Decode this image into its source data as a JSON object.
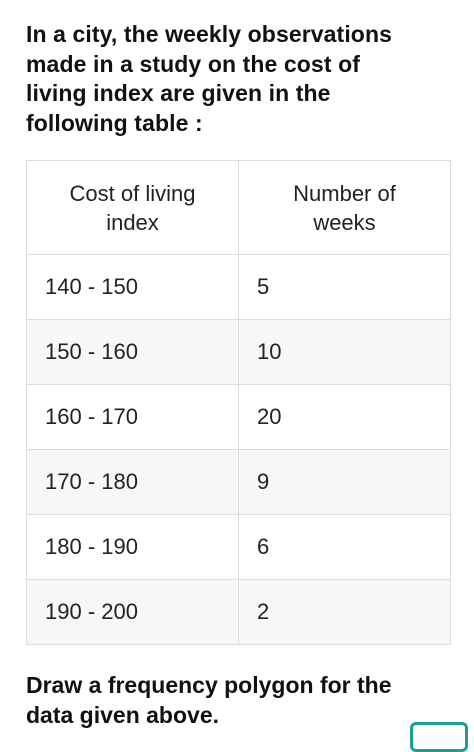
{
  "intro": {
    "lines": [
      "In a city, the weekly observations",
      "made in a study on the cost of",
      "living index are given in the",
      "following table :"
    ]
  },
  "table": {
    "header": [
      [
        "Cost of living",
        "index"
      ],
      [
        "Number of",
        "weeks"
      ]
    ],
    "rows": [
      [
        "140 - 150",
        5
      ],
      [
        "150 - 160",
        10
      ],
      [
        "160 - 170",
        20
      ],
      [
        "170 - 180",
        9
      ],
      [
        "180 - 190",
        6
      ],
      [
        "190 - 200",
        2
      ]
    ]
  },
  "question": {
    "lines": [
      "Draw a frequency polygon for the",
      "data given above."
    ]
  }
}
